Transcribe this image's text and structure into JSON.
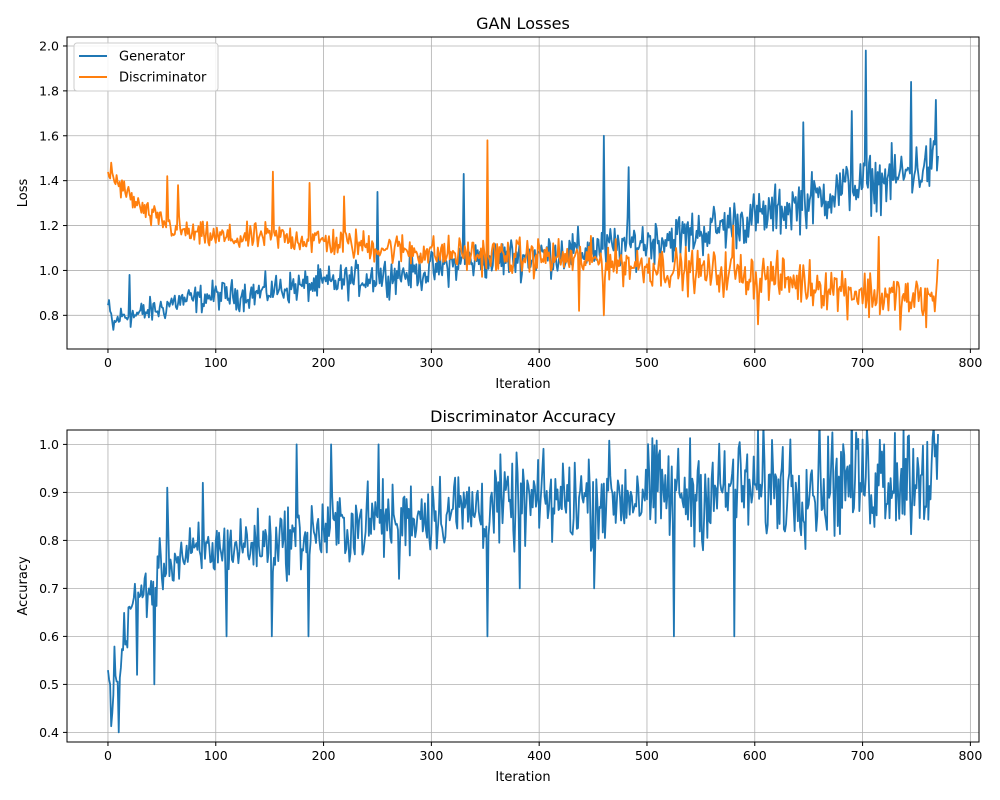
{
  "chart_data": [
    {
      "type": "line",
      "title": "GAN Losses",
      "xlabel": "Iteration",
      "ylabel": "Loss",
      "xlim": [
        -38,
        808
      ],
      "ylim": [
        0.65,
        2.04
      ],
      "xticks": [
        0,
        100,
        200,
        300,
        400,
        500,
        600,
        700,
        800
      ],
      "yticks": [
        0.8,
        1.0,
        1.2,
        1.4,
        1.6,
        1.8,
        2.0
      ],
      "grid": true,
      "legend_position": "top-left",
      "series": [
        {
          "name": "Generator",
          "color": "#1f77b4",
          "points": [
            [
              0,
              0.84
            ],
            [
              5,
              0.75
            ],
            [
              10,
              0.79
            ],
            [
              20,
              0.8
            ],
            [
              25,
              0.8
            ],
            [
              40,
              0.82
            ],
            [
              50,
              0.83
            ],
            [
              60,
              0.86
            ],
            [
              80,
              0.87
            ],
            [
              100,
              0.89
            ],
            [
              120,
              0.89
            ],
            [
              140,
              0.9
            ],
            [
              160,
              0.92
            ],
            [
              180,
              0.93
            ],
            [
              200,
              0.94
            ],
            [
              230,
              0.96
            ],
            [
              260,
              0.98
            ],
            [
              300,
              1.0
            ],
            [
              330,
              1.04
            ],
            [
              360,
              1.05
            ],
            [
              400,
              1.07
            ],
            [
              430,
              1.08
            ],
            [
              460,
              1.1
            ],
            [
              500,
              1.13
            ],
            [
              540,
              1.16
            ],
            [
              580,
              1.21
            ],
            [
              620,
              1.26
            ],
            [
              650,
              1.31
            ],
            [
              680,
              1.36
            ],
            [
              700,
              1.38
            ],
            [
              720,
              1.4
            ],
            [
              740,
              1.43
            ],
            [
              760,
              1.46
            ],
            [
              770,
              1.5
            ]
          ],
          "spikes": [
            [
              20,
              0.98
            ],
            [
              250,
              1.35
            ],
            [
              330,
              1.43
            ],
            [
              460,
              1.6
            ],
            [
              483,
              1.46
            ],
            [
              645,
              1.66
            ],
            [
              690,
              1.71
            ],
            [
              703,
              1.98
            ],
            [
              745,
              1.84
            ],
            [
              768,
              1.76
            ]
          ]
        },
        {
          "name": "Discriminator",
          "color": "#ff7f0e",
          "points": [
            [
              0,
              1.43
            ],
            [
              5,
              1.42
            ],
            [
              10,
              1.38
            ],
            [
              20,
              1.33
            ],
            [
              30,
              1.28
            ],
            [
              40,
              1.24
            ],
            [
              50,
              1.22
            ],
            [
              60,
              1.19
            ],
            [
              80,
              1.16
            ],
            [
              100,
              1.15
            ],
            [
              120,
              1.14
            ],
            [
              140,
              1.15
            ],
            [
              160,
              1.15
            ],
            [
              180,
              1.14
            ],
            [
              200,
              1.13
            ],
            [
              240,
              1.11
            ],
            [
              260,
              1.1
            ],
            [
              300,
              1.08
            ],
            [
              340,
              1.07
            ],
            [
              380,
              1.06
            ],
            [
              400,
              1.06
            ],
            [
              440,
              1.05
            ],
            [
              480,
              1.03
            ],
            [
              520,
              1.01
            ],
            [
              560,
              0.99
            ],
            [
              600,
              0.98
            ],
            [
              640,
              0.95
            ],
            [
              680,
              0.92
            ],
            [
              700,
              0.9
            ],
            [
              740,
              0.87
            ],
            [
              770,
              0.86
            ]
          ],
          "spikes": [
            [
              3,
              1.48
            ],
            [
              55,
              1.42
            ],
            [
              65,
              1.38
            ],
            [
              153,
              1.44
            ],
            [
              187,
              1.39
            ],
            [
              219,
              1.33
            ],
            [
              352,
              1.58
            ],
            [
              437,
              0.82
            ],
            [
              460,
              0.8
            ],
            [
              580,
              1.2
            ],
            [
              603,
              0.76
            ],
            [
              715,
              1.15
            ],
            [
              770,
              1.05
            ]
          ]
        }
      ]
    },
    {
      "type": "line",
      "title": "Discriminator Accuracy",
      "xlabel": "Iteration",
      "ylabel": "Accuracy",
      "xlim": [
        -38,
        808
      ],
      "ylim": [
        0.38,
        1.03
      ],
      "xticks": [
        0,
        100,
        200,
        300,
        400,
        500,
        600,
        700,
        800
      ],
      "yticks": [
        0.4,
        0.5,
        0.6,
        0.7,
        0.8,
        0.9,
        1.0
      ],
      "grid": true,
      "series": [
        {
          "name": "",
          "color": "#1f77b4",
          "points": [
            [
              0,
              0.56
            ],
            [
              3,
              0.45
            ],
            [
              6,
              0.53
            ],
            [
              10,
              0.5
            ],
            [
              15,
              0.6
            ],
            [
              20,
              0.66
            ],
            [
              30,
              0.69
            ],
            [
              40,
              0.7
            ],
            [
              50,
              0.74
            ],
            [
              60,
              0.76
            ],
            [
              80,
              0.77
            ],
            [
              100,
              0.78
            ],
            [
              130,
              0.79
            ],
            [
              160,
              0.8
            ],
            [
              200,
              0.82
            ],
            [
              250,
              0.84
            ],
            [
              300,
              0.86
            ],
            [
              350,
              0.87
            ],
            [
              400,
              0.88
            ],
            [
              450,
              0.89
            ],
            [
              500,
              0.9
            ],
            [
              550,
              0.9
            ],
            [
              600,
              0.91
            ],
            [
              650,
              0.92
            ],
            [
              700,
              0.93
            ],
            [
              750,
              0.94
            ],
            [
              770,
              0.95
            ]
          ],
          "spikes": [
            [
              4,
              0.44
            ],
            [
              10,
              0.4
            ],
            [
              27,
              0.52
            ],
            [
              43,
              0.5
            ],
            [
              55,
              0.91
            ],
            [
              88,
              0.92
            ],
            [
              110,
              0.6
            ],
            [
              152,
              0.6
            ],
            [
              175,
              1.0
            ],
            [
              186,
              0.6
            ],
            [
              207,
              1.0
            ],
            [
              251,
              1.0
            ],
            [
              270,
              0.72
            ],
            [
              352,
              0.6
            ],
            [
              382,
              0.7
            ],
            [
              451,
              0.7
            ],
            [
              525,
              0.6
            ],
            [
              581,
              0.6
            ],
            [
              720,
              1.0
            ],
            [
              768,
              1.0
            ]
          ]
        }
      ]
    }
  ]
}
